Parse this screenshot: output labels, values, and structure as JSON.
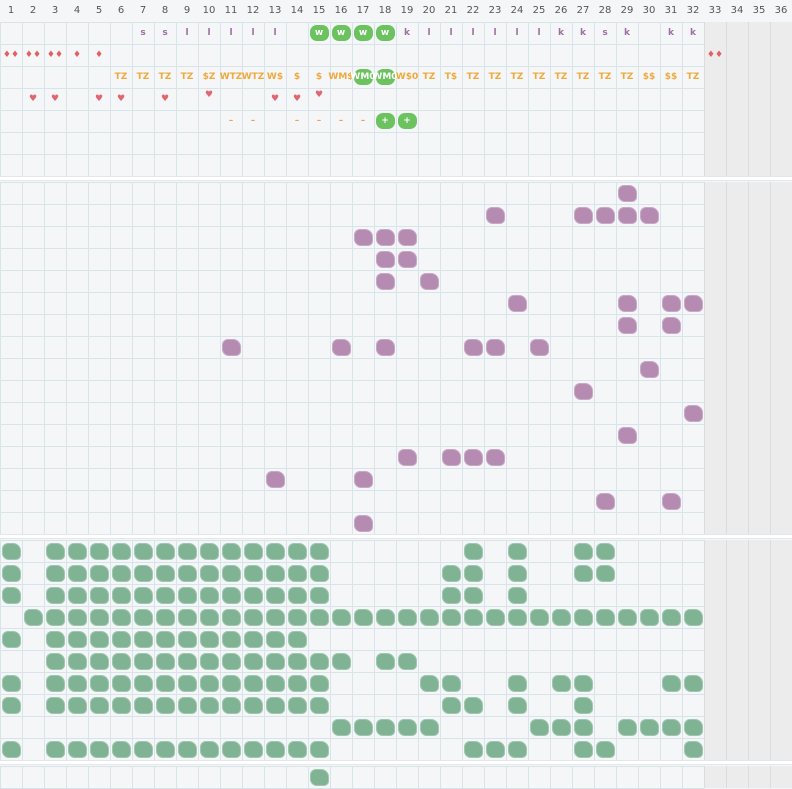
{
  "grid": {
    "columns": [
      "1",
      "2",
      "3",
      "4",
      "5",
      "6",
      "7",
      "8",
      "9",
      "10",
      "11",
      "12",
      "13",
      "14",
      "15",
      "16",
      "17",
      "18",
      "19",
      "20",
      "21",
      "22",
      "23",
      "24",
      "25",
      "26",
      "27",
      "28",
      "29",
      "30",
      "31",
      "32",
      "33",
      "34",
      "35",
      "36"
    ],
    "active_columns": 32
  },
  "colors": {
    "letter_row": "#9b6fa0",
    "drop_row": "#e06063",
    "tz_row": "#f0a93b",
    "heart_row": "#e06672",
    "dash_row": "#f0a05a",
    "pill_green": "#6cc25e",
    "blob_purple": "#b58bb2",
    "blob_green": "#7fb394"
  },
  "top_section": {
    "letter_row": [
      {
        "col": 7,
        "text": "s"
      },
      {
        "col": 8,
        "text": "s"
      },
      {
        "col": 9,
        "text": "l"
      },
      {
        "col": 10,
        "text": "l"
      },
      {
        "col": 11,
        "text": "l"
      },
      {
        "col": 12,
        "text": "l"
      },
      {
        "col": 13,
        "text": "l"
      },
      {
        "col": 15,
        "text": "w",
        "pill": true
      },
      {
        "col": 16,
        "text": "w",
        "pill": true
      },
      {
        "col": 17,
        "text": "w",
        "pill": true
      },
      {
        "col": 18,
        "text": "w",
        "pill": true
      },
      {
        "col": 19,
        "text": "k"
      },
      {
        "col": 20,
        "text": "l"
      },
      {
        "col": 21,
        "text": "l"
      },
      {
        "col": 22,
        "text": "l"
      },
      {
        "col": 23,
        "text": "l"
      },
      {
        "col": 24,
        "text": "l"
      },
      {
        "col": 25,
        "text": "l"
      },
      {
        "col": 26,
        "text": "k"
      },
      {
        "col": 27,
        "text": "k"
      },
      {
        "col": 28,
        "text": "s"
      },
      {
        "col": 29,
        "text": "k"
      },
      {
        "col": 31,
        "text": "k"
      },
      {
        "col": 32,
        "text": "k"
      }
    ],
    "drop_row": [
      {
        "col": 1,
        "text": "♦♦"
      },
      {
        "col": 2,
        "text": "♦♦"
      },
      {
        "col": 3,
        "text": "♦♦"
      },
      {
        "col": 4,
        "text": "♦"
      },
      {
        "col": 5,
        "text": "♦"
      },
      {
        "col": 33,
        "text": "♦♦"
      }
    ],
    "tz_row": [
      {
        "col": 6,
        "text": "TZ"
      },
      {
        "col": 7,
        "text": "TZ"
      },
      {
        "col": 8,
        "text": "TZ"
      },
      {
        "col": 9,
        "text": "TZ"
      },
      {
        "col": 10,
        "text": "$Z"
      },
      {
        "col": 11,
        "text": "WTZ"
      },
      {
        "col": 12,
        "text": "WTZ"
      },
      {
        "col": 13,
        "text": "W$"
      },
      {
        "col": 14,
        "text": "$"
      },
      {
        "col": 15,
        "text": "$"
      },
      {
        "col": 16,
        "text": "WM$"
      },
      {
        "col": 17,
        "text": "WM0",
        "pill": true
      },
      {
        "col": 18,
        "text": "WM0",
        "pill": true
      },
      {
        "col": 19,
        "text": "W$0"
      },
      {
        "col": 20,
        "text": "TZ"
      },
      {
        "col": 21,
        "text": "T$"
      },
      {
        "col": 22,
        "text": "TZ"
      },
      {
        "col": 23,
        "text": "TZ"
      },
      {
        "col": 24,
        "text": "TZ"
      },
      {
        "col": 25,
        "text": "TZ"
      },
      {
        "col": 26,
        "text": "TZ"
      },
      {
        "col": 27,
        "text": "TZ"
      },
      {
        "col": 28,
        "text": "TZ"
      },
      {
        "col": 29,
        "text": "TZ"
      },
      {
        "col": 30,
        "text": "$$"
      },
      {
        "col": 31,
        "text": "$$"
      },
      {
        "col": 32,
        "text": "TZ"
      }
    ],
    "heart_row": [
      {
        "col": 2,
        "text": "♥"
      },
      {
        "col": 3,
        "text": "♥"
      },
      {
        "col": 5,
        "text": "♥"
      },
      {
        "col": 6,
        "text": "♥"
      },
      {
        "col": 8,
        "text": "♥"
      },
      {
        "col": 10,
        "text": "♥",
        "offset": "up"
      },
      {
        "col": 13,
        "text": "♥"
      },
      {
        "col": 14,
        "text": "♥"
      },
      {
        "col": 15,
        "text": "♥",
        "offset": "up"
      }
    ],
    "dash_row": [
      {
        "col": 11,
        "text": "–"
      },
      {
        "col": 12,
        "text": "–"
      },
      {
        "col": 14,
        "text": "–"
      },
      {
        "col": 15,
        "text": "–"
      },
      {
        "col": 16,
        "text": "–"
      },
      {
        "col": 17,
        "text": "–"
      },
      {
        "col": 18,
        "text": "+",
        "pill": true
      },
      {
        "col": 19,
        "text": "+",
        "pill": true
      }
    ]
  },
  "middle_section": {
    "cells": [
      [
        0,
        [
          29
        ]
      ],
      [
        1,
        [
          23,
          27,
          28,
          29,
          30
        ]
      ],
      [
        2,
        [
          17,
          18,
          19
        ]
      ],
      [
        3,
        [
          18,
          19
        ]
      ],
      [
        4,
        [
          18,
          20
        ]
      ],
      [
        5,
        [
          24,
          29,
          31,
          32
        ]
      ],
      [
        6,
        [
          29,
          31
        ]
      ],
      [
        7,
        [
          11,
          16,
          18,
          22,
          23,
          25
        ]
      ],
      [
        8,
        [
          30
        ]
      ],
      [
        9,
        [
          27
        ]
      ],
      [
        10,
        [
          32
        ]
      ],
      [
        11,
        [
          29
        ]
      ],
      [
        12,
        [
          19,
          21,
          22,
          23
        ]
      ],
      [
        13,
        [
          13,
          17
        ]
      ],
      [
        14,
        [
          28,
          31
        ]
      ],
      [
        15,
        [
          17
        ]
      ]
    ]
  },
  "bottom_section": {
    "cells": [
      [
        0,
        [
          1,
          3,
          4,
          5,
          6,
          7,
          8,
          9,
          10,
          11,
          12,
          13,
          14,
          15,
          22,
          24,
          27,
          28
        ]
      ],
      [
        1,
        [
          1,
          3,
          4,
          5,
          6,
          7,
          8,
          9,
          10,
          11,
          12,
          13,
          14,
          15,
          21,
          22,
          24,
          27,
          28
        ]
      ],
      [
        2,
        [
          1,
          3,
          4,
          5,
          6,
          7,
          8,
          9,
          10,
          11,
          12,
          13,
          14,
          15,
          21,
          22,
          24
        ]
      ],
      [
        3,
        [
          2,
          3,
          4,
          5,
          6,
          7,
          8,
          9,
          10,
          11,
          12,
          13,
          14,
          15,
          16,
          17,
          18,
          19,
          20,
          21,
          22,
          23,
          24,
          25,
          26,
          27,
          28,
          29,
          30,
          31,
          32
        ]
      ],
      [
        4,
        [
          1,
          3,
          4,
          5,
          6,
          7,
          8,
          9,
          10,
          11,
          12,
          13,
          14
        ]
      ],
      [
        5,
        [
          3,
          4,
          5,
          6,
          7,
          8,
          9,
          10,
          11,
          12,
          13,
          14,
          15,
          16,
          18,
          19
        ]
      ],
      [
        6,
        [
          1,
          3,
          4,
          5,
          6,
          7,
          8,
          9,
          10,
          11,
          12,
          13,
          14,
          15,
          20,
          21,
          24,
          26,
          27,
          31,
          32
        ]
      ],
      [
        7,
        [
          1,
          3,
          4,
          5,
          6,
          7,
          8,
          9,
          10,
          11,
          12,
          13,
          14,
          15,
          21,
          22,
          24,
          27
        ]
      ],
      [
        8,
        [
          16,
          17,
          18,
          19,
          20,
          25,
          26,
          27,
          29,
          30,
          31,
          32
        ]
      ],
      [
        9,
        [
          1,
          3,
          4,
          5,
          6,
          7,
          8,
          9,
          10,
          11,
          12,
          13,
          14,
          15,
          22,
          23,
          24,
          27,
          28,
          32
        ]
      ]
    ]
  },
  "footer_section": {
    "cells": [
      [
        0,
        [
          15
        ]
      ]
    ]
  }
}
